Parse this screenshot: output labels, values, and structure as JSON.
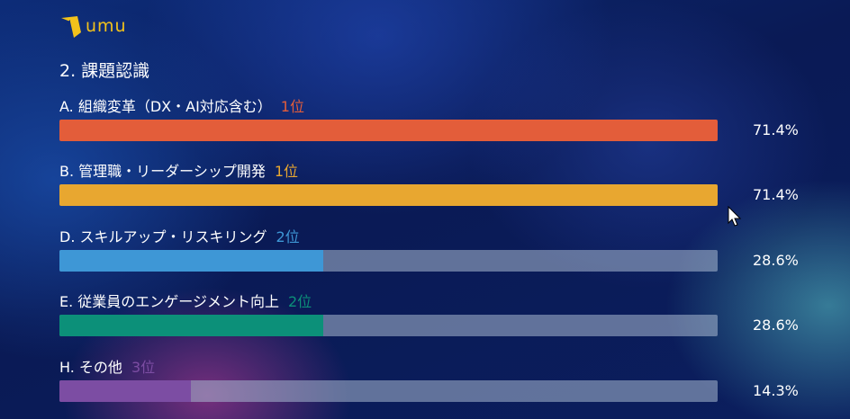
{
  "logo": {
    "text": "umu"
  },
  "title": "2. 課題認識",
  "chart_data": {
    "type": "bar",
    "title": "2. 課題認識",
    "max": 71.4,
    "items": [
      {
        "label": "A. 組織変革（DX・AI対応含む）",
        "rank": "1位",
        "value": 71.4,
        "value_label": "71.4%",
        "color": "#e35d3a"
      },
      {
        "label": "B. 管理職・リーダーシップ開発",
        "rank": "1位",
        "value": 71.4,
        "value_label": "71.4%",
        "color": "#e8a730"
      },
      {
        "label": "D. スキルアップ・リスキリング",
        "rank": "2位",
        "value": 28.6,
        "value_label": "28.6%",
        "color": "#3e97d6"
      },
      {
        "label": "E. 従業員のエンゲージメント向上",
        "rank": "2位",
        "value": 28.6,
        "value_label": "28.6%",
        "color": "#0c9079"
      },
      {
        "label": "H. その他",
        "rank": "3位",
        "value": 14.3,
        "value_label": "14.3%",
        "color": "#7c4da3"
      }
    ]
  }
}
